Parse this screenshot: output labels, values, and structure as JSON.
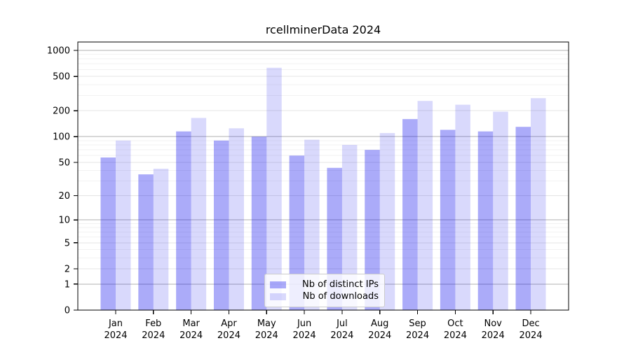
{
  "title": "rcellminerData 2024",
  "legend": {
    "items": [
      {
        "label": "Nb of distinct IPs",
        "color": "rgba(0,0,238,0.33)"
      },
      {
        "label": "Nb of downloads",
        "color": "rgba(0,0,238,0.15)"
      }
    ]
  },
  "chart_data": {
    "type": "bar",
    "title": "rcellminerData 2024",
    "categories": [
      "Jan",
      "Feb",
      "Mar",
      "Apr",
      "May",
      "Jun",
      "Jul",
      "Aug",
      "Sep",
      "Oct",
      "Nov",
      "Dec"
    ],
    "category_year": "2024",
    "series": [
      {
        "name": "Nb of distinct IPs",
        "color": "rgba(0,0,238,0.33)",
        "values": [
          57,
          36,
          115,
          90,
          100,
          60,
          43,
          70,
          160,
          120,
          115,
          130
        ]
      },
      {
        "name": "Nb of downloads",
        "color": "rgba(0,0,238,0.15)",
        "values": [
          90,
          42,
          165,
          125,
          630,
          92,
          80,
          110,
          260,
          235,
          195,
          280
        ]
      }
    ],
    "xlabel": "",
    "ylabel": "",
    "y_scale": "log10(1+v)",
    "ylim": [
      0,
      1250
    ],
    "y_ticks": [
      0,
      1,
      2,
      5,
      10,
      20,
      50,
      100,
      200,
      500,
      1000
    ],
    "y_decade_ticks": [
      1,
      10,
      100,
      1000
    ],
    "y_minor_gridlines": [
      3,
      4,
      6,
      7,
      8,
      9,
      30,
      40,
      60,
      70,
      80,
      90,
      300,
      400,
      600,
      700,
      800,
      900
    ],
    "grid": "horizontal",
    "legend_position": "bottom-center",
    "colors": {
      "grid_decade": "#b2b2b2",
      "grid_labeled": "#e4e4e4",
      "grid_minor": "#f2f2f2",
      "axis": "#000000"
    }
  }
}
